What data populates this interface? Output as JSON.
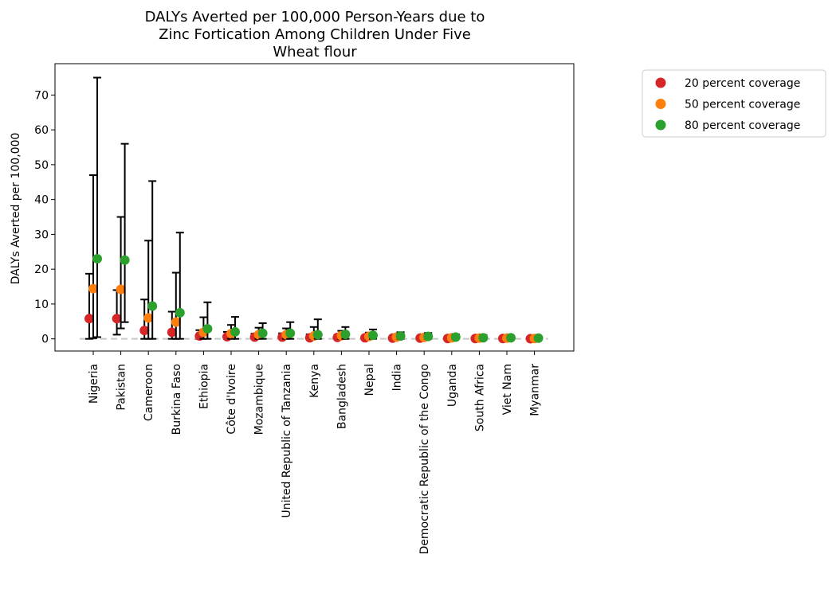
{
  "chart_data": {
    "type": "scatter",
    "title": [
      "DALYs Averted per 100,000 Person-Years due to",
      "Zinc Fortication Among Children Under Five",
      "Wheat flour"
    ],
    "xlabel": "",
    "ylabel": "DALYs Averted per 100,000",
    "ylim": [
      -3.5,
      79
    ],
    "yticks": [
      0,
      10,
      20,
      30,
      40,
      50,
      60,
      70
    ],
    "grid": false,
    "legend_placement": "outside-top-right",
    "reference_line": {
      "y": 0,
      "style": "dashed",
      "color": "#c8c8c8"
    },
    "categories": [
      "Nigeria",
      "Pakistan",
      "Cameroon",
      "Burkina Faso",
      "Ethiopia",
      "Côte d'Ivoire",
      "Mozambique",
      "United Republic of Tanzania",
      "Kenya",
      "Bangladesh",
      "Nepal",
      "India",
      "Democratic Republic of the Congo",
      "Uganda",
      "South Africa",
      "Viet Nam",
      "Myanmar"
    ],
    "series": [
      {
        "name": "20 percent coverage",
        "color": "#d62728",
        "values": [
          5.8,
          5.8,
          2.4,
          1.9,
          0.8,
          0.6,
          0.5,
          0.5,
          0.3,
          0.4,
          0.3,
          0.2,
          0.2,
          0.1,
          0.1,
          0.1,
          0.05
        ],
        "lower": [
          0.0,
          1.2,
          0.0,
          0.0,
          0.0,
          0.0,
          0.0,
          0.0,
          0.0,
          0.0,
          0.0,
          0.0,
          0.0,
          0.0,
          0.0,
          0.0,
          0.0
        ],
        "upper": [
          18.7,
          14.0,
          11.3,
          7.8,
          2.5,
          2.0,
          1.5,
          1.6,
          1.3,
          1.0,
          0.8,
          0.5,
          0.5,
          0.4,
          0.3,
          0.3,
          0.2
        ]
      },
      {
        "name": "50 percent coverage",
        "color": "#ff7f0e",
        "values": [
          14.4,
          14.2,
          6.0,
          4.8,
          1.9,
          1.5,
          1.2,
          1.2,
          0.8,
          0.9,
          0.7,
          0.5,
          0.4,
          0.3,
          0.2,
          0.2,
          0.1
        ],
        "lower": [
          0.2,
          3.0,
          0.0,
          0.0,
          0.0,
          0.0,
          0.0,
          0.0,
          0.0,
          0.0,
          0.0,
          0.0,
          0.0,
          0.0,
          0.0,
          0.0,
          0.0
        ],
        "upper": [
          47.0,
          35.0,
          28.2,
          19.0,
          6.2,
          4.0,
          3.2,
          3.0,
          3.4,
          2.3,
          1.8,
          1.2,
          1.1,
          0.9,
          0.7,
          0.6,
          0.4
        ]
      },
      {
        "name": "80 percent coverage",
        "color": "#2ca02c",
        "values": [
          23.0,
          22.6,
          9.4,
          7.5,
          2.9,
          2.0,
          1.6,
          1.6,
          1.2,
          1.3,
          1.0,
          0.8,
          0.7,
          0.5,
          0.3,
          0.3,
          0.2
        ],
        "lower": [
          0.5,
          4.8,
          0.0,
          0.0,
          0.0,
          0.0,
          0.0,
          0.0,
          0.0,
          0.0,
          0.0,
          0.0,
          0.0,
          0.0,
          0.0,
          0.0,
          0.0
        ],
        "upper": [
          75.0,
          56.0,
          45.3,
          30.5,
          10.5,
          6.3,
          4.5,
          4.8,
          5.6,
          3.4,
          2.7,
          1.9,
          1.7,
          1.3,
          1.1,
          0.9,
          0.7
        ]
      }
    ]
  }
}
